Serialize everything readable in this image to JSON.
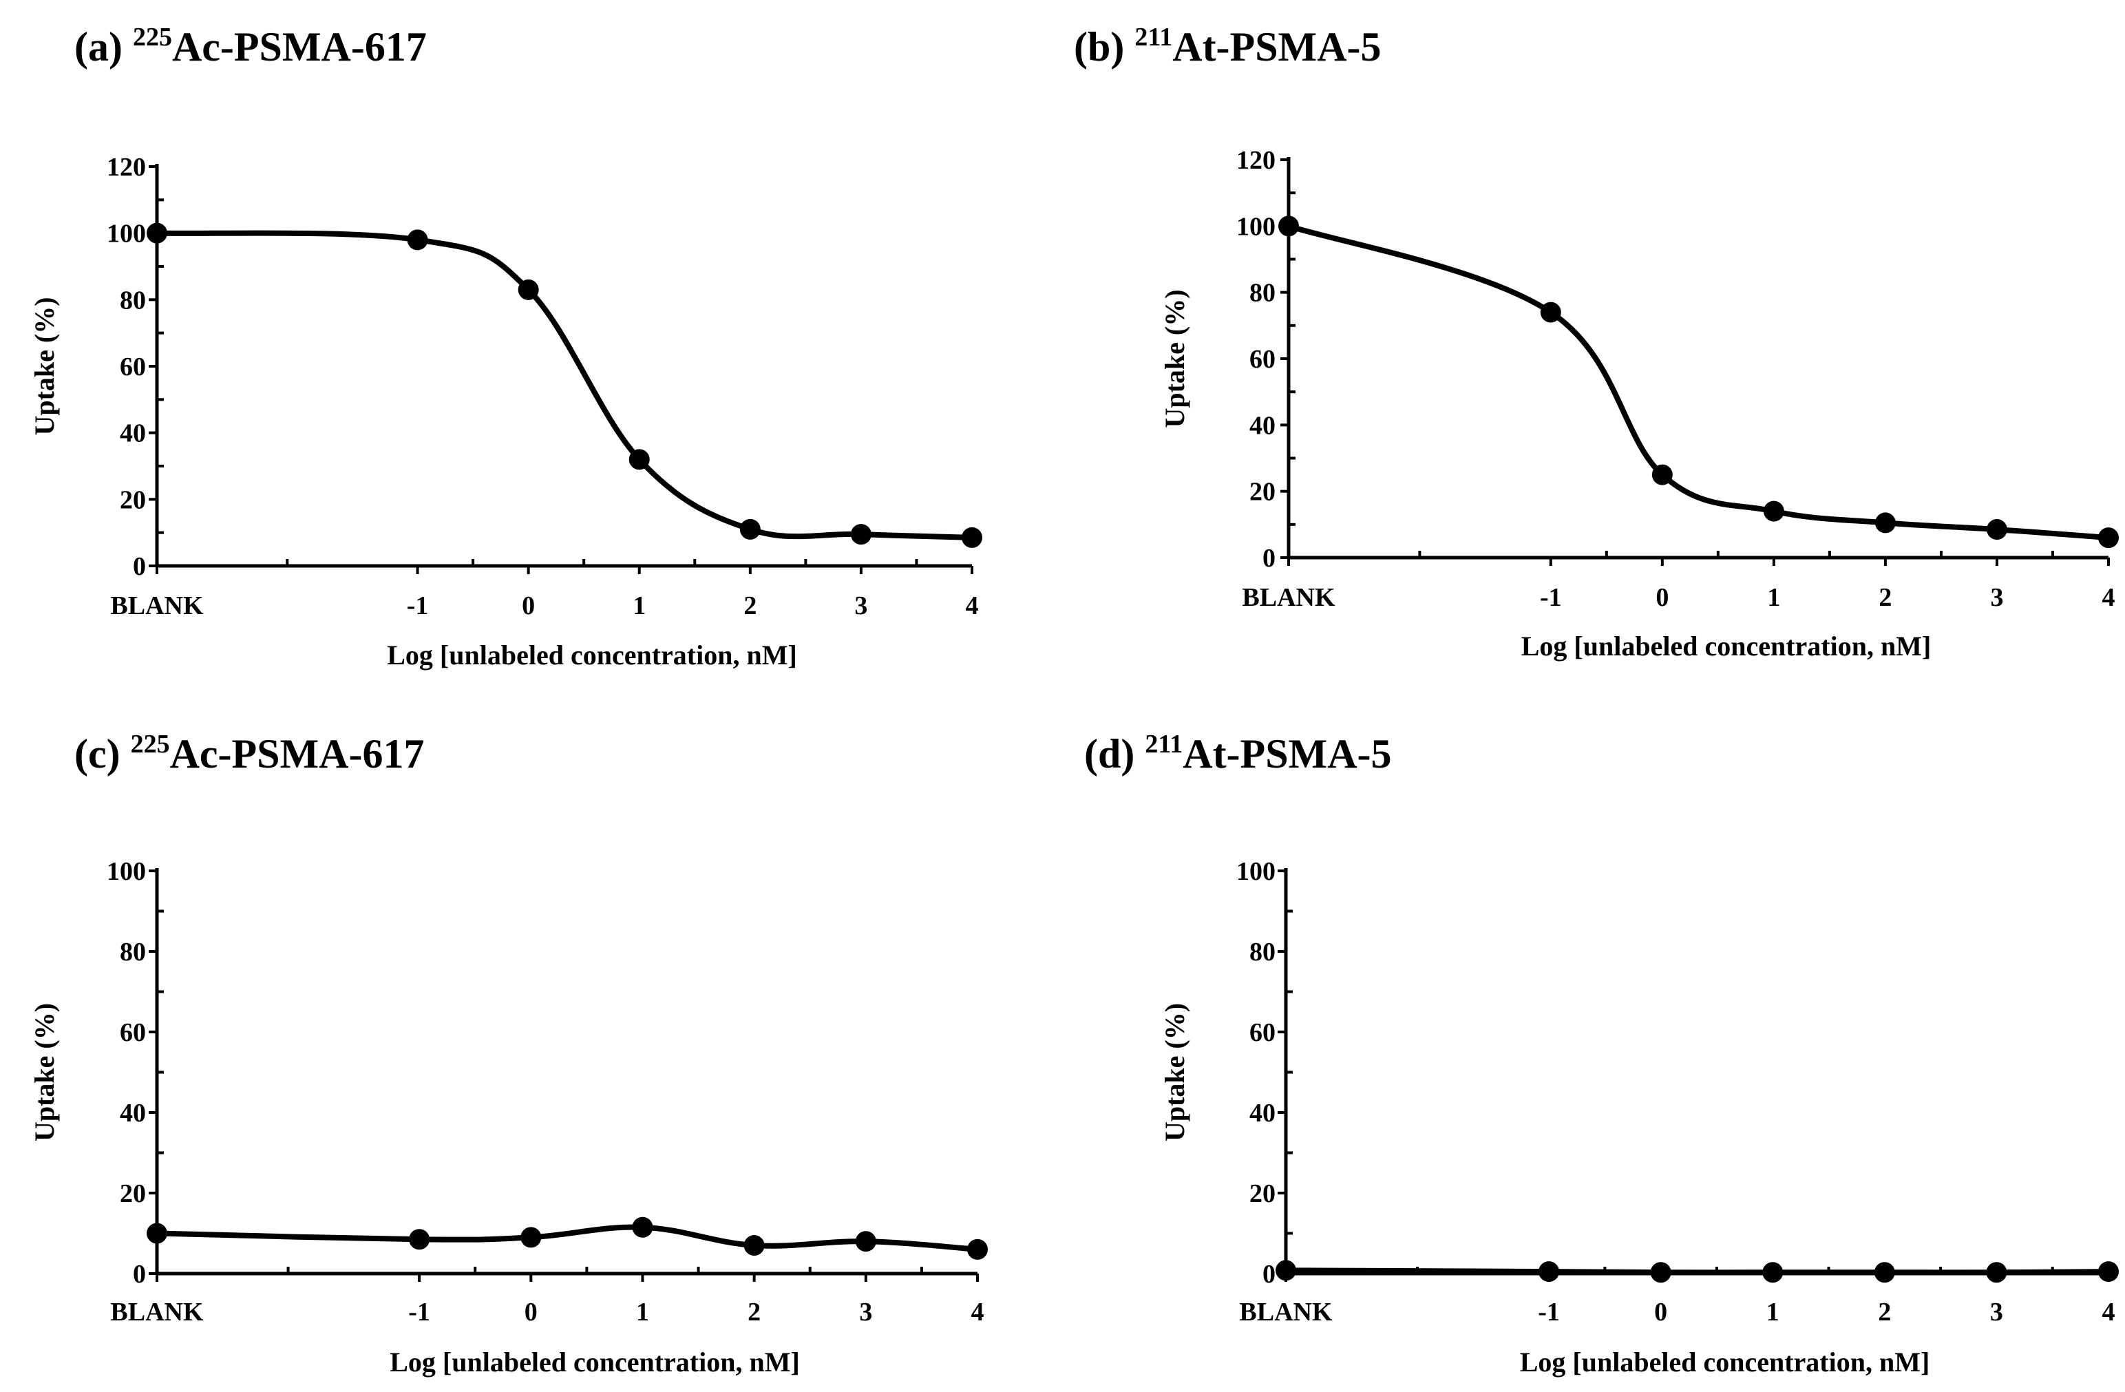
{
  "figure": {
    "colors": {
      "ink": "#000000",
      "background": "#ffffff"
    }
  },
  "chart_data": [
    {
      "id": "a",
      "type": "line",
      "title": {
        "prefix": "(a) ",
        "superscript": "225",
        "name": "Ac-PSMA-617"
      },
      "xlabel": "Log [unlabeled concentration, nM]",
      "ylabel": "Uptake (%)",
      "categories": [
        "BLANK",
        "-1",
        "0",
        "1",
        "2",
        "3",
        "4"
      ],
      "x": [
        -3.35,
        -1,
        0,
        1,
        2,
        3,
        4
      ],
      "xlim": [
        -3.35,
        4
      ],
      "ylim": [
        0,
        120
      ],
      "yticks": [
        0,
        20,
        40,
        60,
        80,
        100,
        120
      ],
      "series": [
        {
          "name": "Uptake",
          "values": [
            100,
            98,
            83,
            32,
            11,
            9.5,
            8.5
          ]
        }
      ]
    },
    {
      "id": "b",
      "type": "line",
      "title": {
        "prefix": "(b) ",
        "superscript": "211",
        "name": "At-PSMA-5"
      },
      "xlabel": "Log [unlabeled concentration, nM]",
      "ylabel": "Uptake (%)",
      "categories": [
        "BLANK",
        "-1",
        "0",
        "1",
        "2",
        "3",
        "4"
      ],
      "x": [
        -3.35,
        -1,
        0,
        1,
        2,
        3,
        4
      ],
      "xlim": [
        -3.35,
        4
      ],
      "ylim": [
        0,
        120
      ],
      "yticks": [
        0,
        20,
        40,
        60,
        80,
        100,
        120
      ],
      "series": [
        {
          "name": "Uptake",
          "values": [
            100,
            74,
            25,
            14,
            10.5,
            8.5,
            6
          ]
        }
      ]
    },
    {
      "id": "c",
      "type": "line",
      "title": {
        "prefix": "(c) ",
        "superscript": "225",
        "name": "Ac-PSMA-617"
      },
      "xlabel": "Log [unlabeled concentration, nM]",
      "ylabel": "Uptake (%)",
      "categories": [
        "BLANK",
        "-1",
        "0",
        "1",
        "2",
        "3",
        "4"
      ],
      "x": [
        -3.35,
        -1,
        0,
        1,
        2,
        3,
        4
      ],
      "xlim": [
        -3.35,
        4
      ],
      "ylim": [
        0,
        100
      ],
      "yticks": [
        0,
        20,
        40,
        60,
        80,
        100
      ],
      "series": [
        {
          "name": "Uptake",
          "values": [
            10,
            8.5,
            9,
            11.5,
            7,
            8,
            6
          ]
        }
      ]
    },
    {
      "id": "d",
      "type": "line",
      "title": {
        "prefix": "(d) ",
        "superscript": "211",
        "name": "At-PSMA-5"
      },
      "xlabel": "Log [unlabeled concentration, nM]",
      "ylabel": "Uptake (%)",
      "categories": [
        "BLANK",
        "-1",
        "0",
        "1",
        "2",
        "3",
        "4"
      ],
      "x": [
        -3.35,
        -1,
        0,
        1,
        2,
        3,
        4
      ],
      "xlim": [
        -3.35,
        4
      ],
      "ylim": [
        0,
        100
      ],
      "yticks": [
        0,
        20,
        40,
        60,
        80,
        100
      ],
      "series": [
        {
          "name": "Uptake",
          "values": [
            0.8,
            0.5,
            0.3,
            0.3,
            0.3,
            0.3,
            0.5
          ]
        }
      ]
    }
  ]
}
